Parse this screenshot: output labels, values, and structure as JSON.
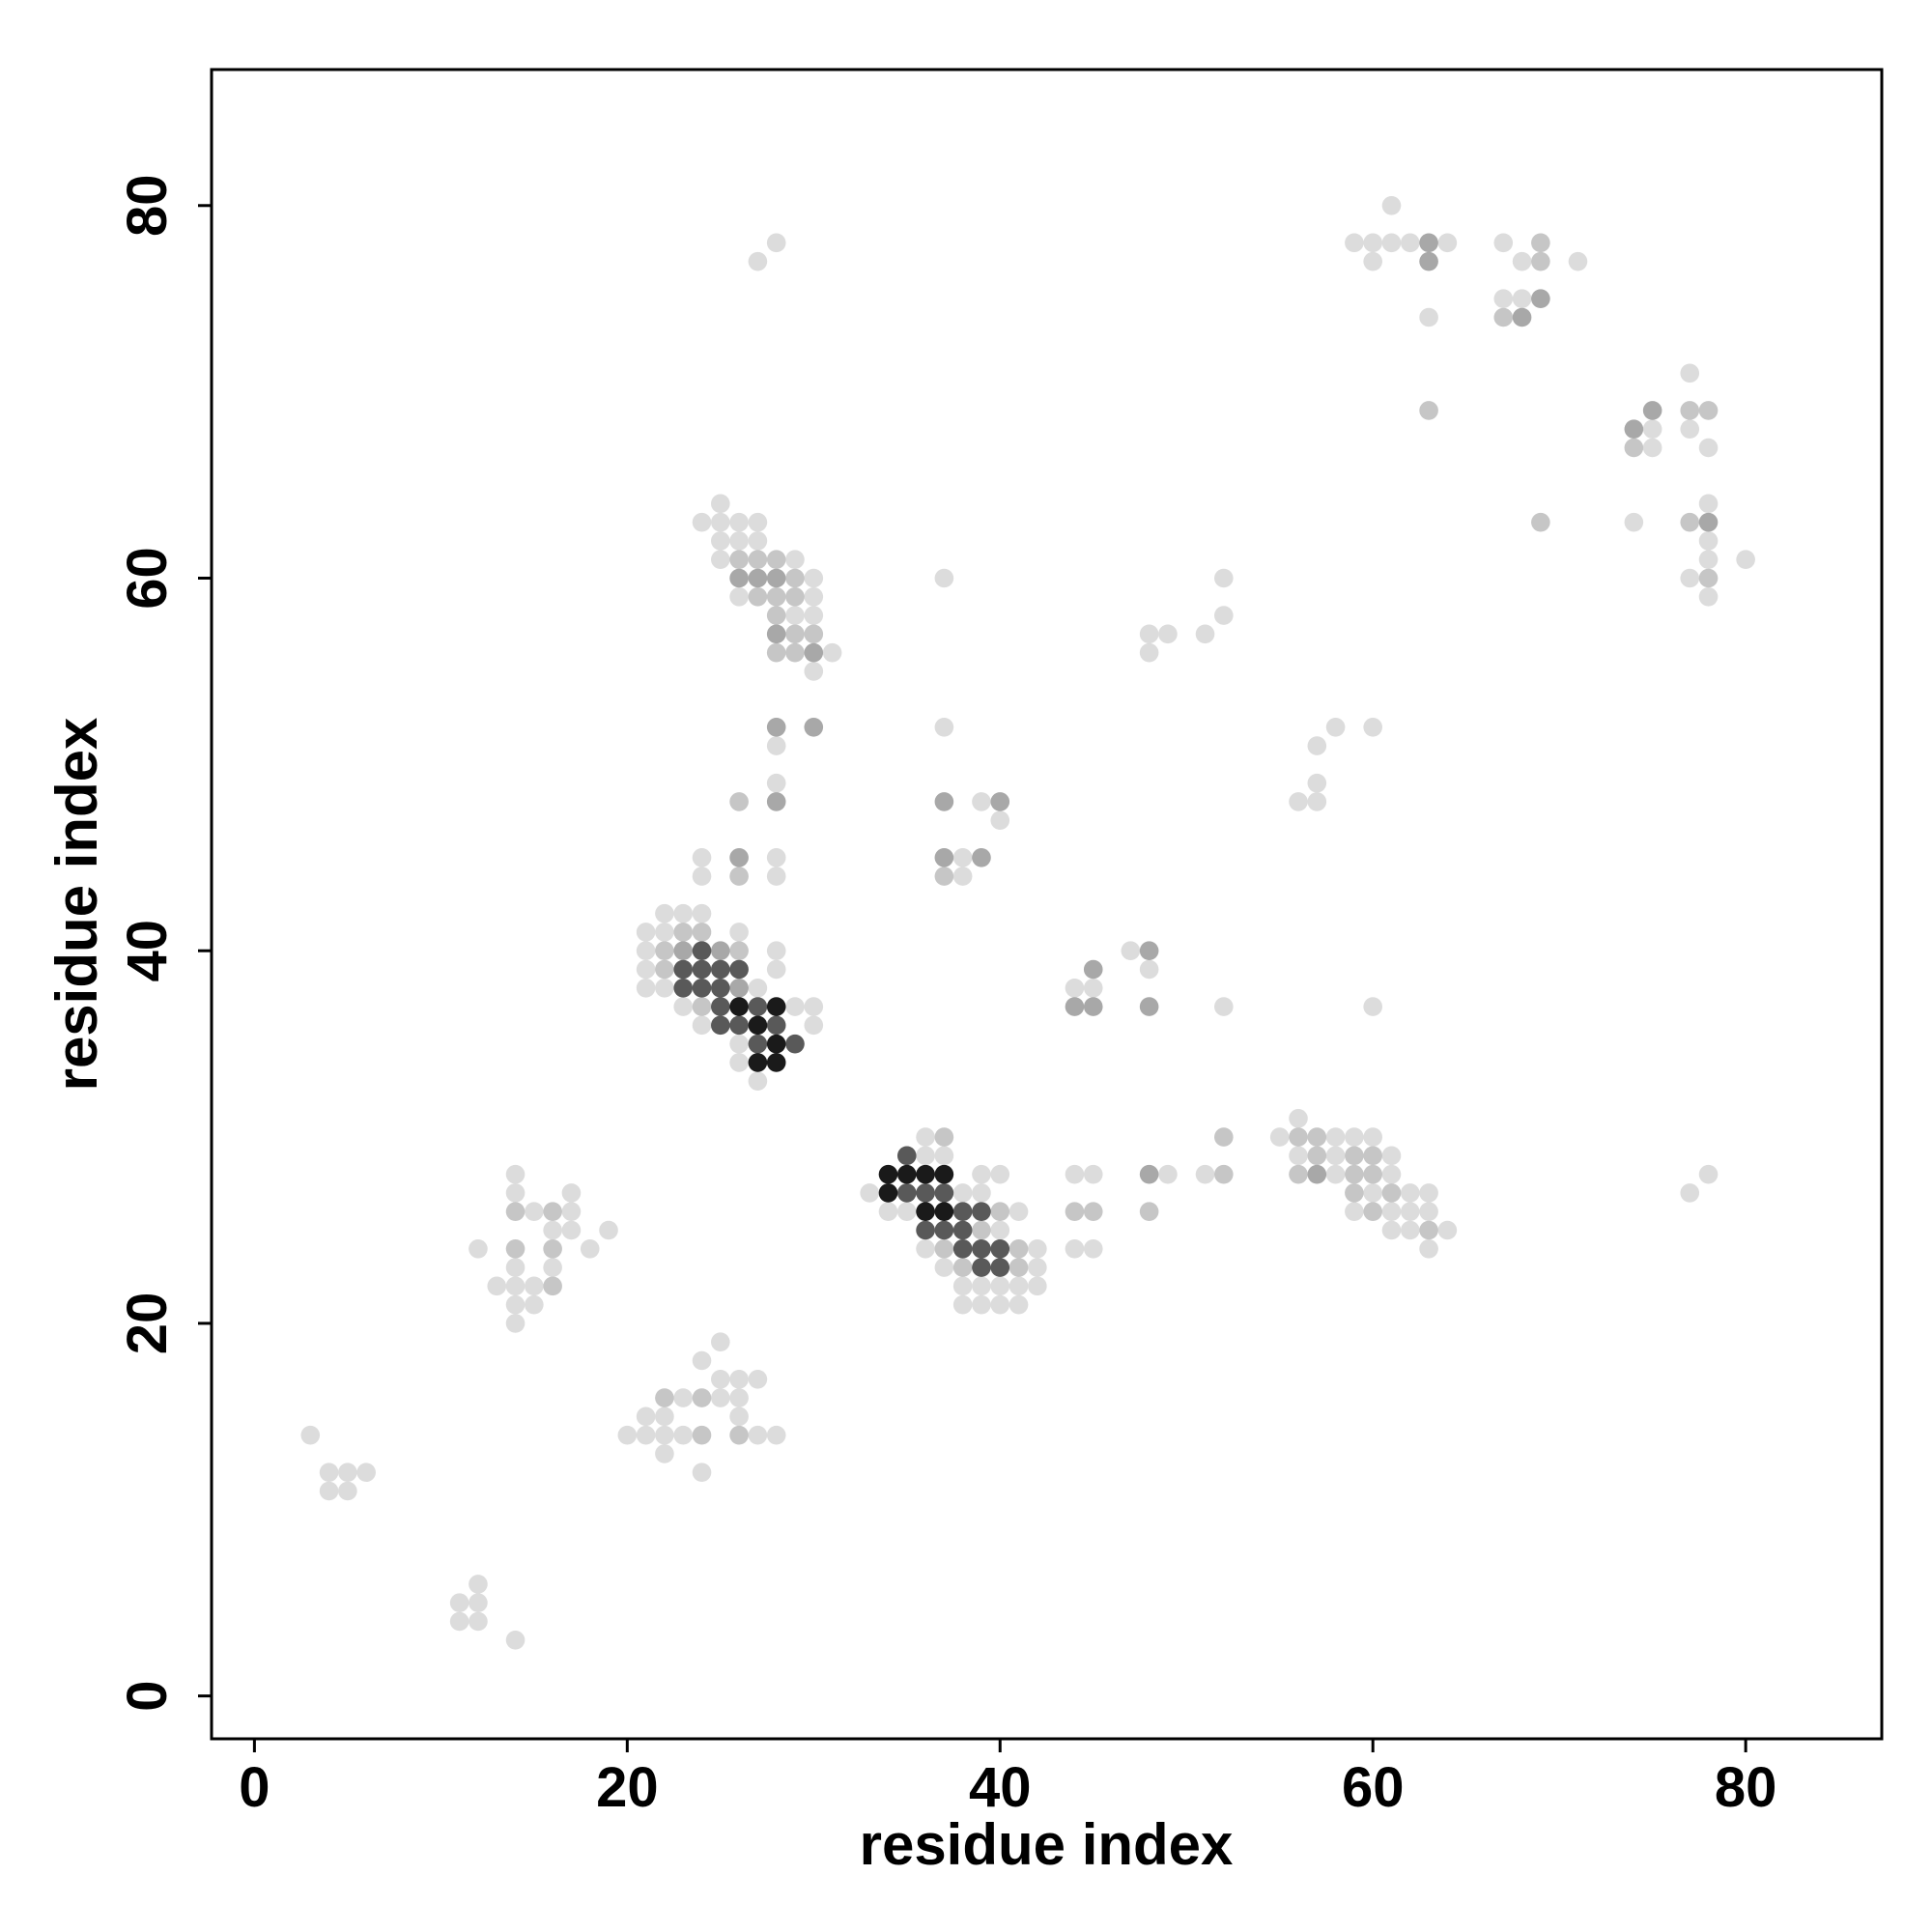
{
  "chart_data": {
    "type": "scatter",
    "xlabel": "residue index",
    "ylabel": "residue index",
    "xlim": [
      -2.3,
      87.3
    ],
    "ylim": [
      -2.3,
      87.3
    ],
    "xticks": [
      0,
      20,
      40,
      60,
      80
    ],
    "yticks": [
      0,
      20,
      40,
      60,
      80
    ],
    "series": [
      {
        "color": "#dcdcdc",
        "x": [
          27,
          28,
          61,
          59,
          60,
          61,
          62,
          64,
          60,
          63,
          67,
          68,
          71,
          67,
          68,
          77,
          75,
          77,
          75,
          78,
          78,
          74,
          78,
          78,
          80,
          77,
          78,
          25,
          24,
          25,
          26,
          27,
          25,
          26,
          27,
          25,
          29,
          30,
          26,
          30,
          29,
          30,
          31,
          30,
          28,
          28,
          24,
          28,
          24,
          28,
          37,
          37,
          39,
          40,
          38,
          38,
          22,
          23,
          24,
          21,
          22,
          26,
          21,
          28,
          21,
          28,
          21,
          22,
          27,
          23,
          29,
          30,
          24,
          30,
          26,
          26,
          27,
          47,
          48,
          44,
          45,
          52,
          60,
          48,
          49,
          51,
          48,
          52,
          52,
          58,
          60,
          57,
          57,
          56,
          57,
          36,
          36,
          37,
          39,
          40,
          33,
          38,
          39,
          34,
          35,
          41,
          40,
          36,
          42,
          37,
          42,
          38,
          39,
          40,
          41,
          42,
          38,
          39,
          40,
          41,
          44,
          45,
          49,
          51,
          44,
          45,
          56,
          55,
          58,
          59,
          60,
          56,
          58,
          61,
          58,
          61,
          60,
          62,
          63,
          59,
          61,
          62,
          63,
          61,
          62,
          64,
          63,
          78,
          77,
          14,
          14,
          17,
          15,
          17,
          16,
          17,
          19,
          12,
          18,
          14,
          16,
          13,
          14,
          15,
          14,
          15,
          14,
          25,
          24,
          25,
          26,
          27,
          23,
          25,
          26,
          21,
          22,
          26,
          20,
          21,
          22,
          23,
          27,
          28,
          22,
          24,
          3,
          4,
          5,
          6,
          4,
          5,
          12,
          11,
          12,
          11,
          12,
          14
        ],
        "values": [
          77,
          78,
          80,
          78,
          78,
          78,
          78,
          78,
          77,
          74,
          78,
          77,
          77,
          75,
          75,
          71,
          68,
          68,
          67,
          67,
          64,
          63,
          62,
          61,
          61,
          60,
          59,
          64,
          63,
          63,
          63,
          63,
          62,
          62,
          62,
          61,
          61,
          60,
          59,
          59,
          58,
          58,
          56,
          55,
          51,
          49,
          45,
          45,
          44,
          44,
          60,
          52,
          48,
          47,
          45,
          44,
          42,
          42,
          42,
          41,
          41,
          41,
          40,
          40,
          39,
          39,
          38,
          38,
          38,
          37,
          37,
          37,
          36,
          36,
          35,
          34,
          33,
          40,
          39,
          38,
          38,
          37,
          37,
          57,
          57,
          57,
          56,
          60,
          58,
          52,
          52,
          51,
          49,
          48,
          48,
          30,
          29,
          29,
          28,
          28,
          27,
          27,
          27,
          26,
          26,
          26,
          25,
          24,
          24,
          23,
          23,
          22,
          22,
          22,
          22,
          22,
          21,
          21,
          21,
          21,
          28,
          28,
          28,
          28,
          24,
          24,
          31,
          30,
          30,
          30,
          30,
          29,
          29,
          29,
          28,
          28,
          27,
          27,
          27,
          26,
          26,
          26,
          26,
          25,
          25,
          25,
          24,
          28,
          27,
          28,
          27,
          27,
          26,
          26,
          25,
          25,
          25,
          24,
          24,
          23,
          23,
          22,
          22,
          22,
          21,
          21,
          20,
          19,
          18,
          17,
          17,
          17,
          16,
          16,
          16,
          15,
          15,
          15,
          14,
          14,
          14,
          14,
          14,
          14,
          13,
          12,
          14,
          12,
          12,
          12,
          11,
          11,
          6,
          5,
          5,
          4,
          4,
          3
        ]
      },
      {
        "color": "#c6c6c6",
        "x": [
          69,
          63,
          69,
          67,
          77,
          78,
          74,
          69,
          77,
          78,
          26,
          27,
          28,
          29,
          27,
          28,
          29,
          28,
          29,
          30,
          28,
          29,
          26,
          26,
          37,
          23,
          24,
          22,
          26,
          22,
          24,
          37,
          40,
          39,
          37,
          41,
          38,
          41,
          52,
          52,
          44,
          45,
          48,
          56,
          57,
          57,
          59,
          60,
          56,
          59,
          60,
          59,
          61,
          60,
          63,
          14,
          16,
          14,
          16,
          16,
          22,
          24,
          24,
          26
        ],
        "values": [
          78,
          69,
          77,
          74,
          69,
          69,
          67,
          63,
          63,
          60,
          61,
          61,
          61,
          60,
          59,
          59,
          59,
          58,
          57,
          57,
          56,
          56,
          48,
          44,
          44,
          41,
          41,
          40,
          40,
          39,
          37,
          30,
          26,
          25,
          24,
          24,
          23,
          23,
          28,
          30,
          26,
          26,
          26,
          30,
          30,
          29,
          29,
          29,
          28,
          28,
          28,
          27,
          27,
          26,
          25,
          26,
          26,
          24,
          24,
          22,
          16,
          16,
          14,
          14
        ]
      },
      {
        "color": "#a8a8a8",
        "x": [
          63,
          63,
          69,
          68,
          75,
          74,
          78,
          26,
          27,
          28,
          28,
          30,
          28,
          30,
          28,
          26,
          37,
          40,
          37,
          39,
          23,
          25,
          26,
          48,
          45,
          44,
          45,
          48,
          48,
          57
        ],
        "values": [
          78,
          77,
          75,
          74,
          69,
          68,
          63,
          60,
          60,
          60,
          57,
          56,
          52,
          52,
          48,
          45,
          48,
          48,
          45,
          45,
          40,
          40,
          38,
          40,
          39,
          37,
          37,
          37,
          28,
          28
        ]
      },
      {
        "color": "#595959",
        "x": [
          24,
          23,
          24,
          25,
          26,
          23,
          24,
          25,
          25,
          27,
          25,
          26,
          28,
          27,
          29,
          35,
          35,
          36,
          37,
          38,
          39,
          36,
          37,
          38,
          38,
          39,
          40,
          39,
          40
        ],
        "values": [
          40,
          39,
          39,
          39,
          39,
          38,
          38,
          38,
          37,
          37,
          36,
          36,
          36,
          35,
          35,
          29,
          27,
          27,
          27,
          26,
          26,
          25,
          25,
          25,
          24,
          24,
          24,
          23,
          23
        ]
      },
      {
        "color": "#1a1a1a",
        "x": [
          26,
          28,
          27,
          28,
          27,
          28,
          34,
          35,
          36,
          37,
          34,
          36,
          37
        ],
        "values": [
          37,
          37,
          36,
          35,
          34,
          34,
          28,
          28,
          28,
          28,
          27,
          26,
          26
        ]
      }
    ]
  }
}
